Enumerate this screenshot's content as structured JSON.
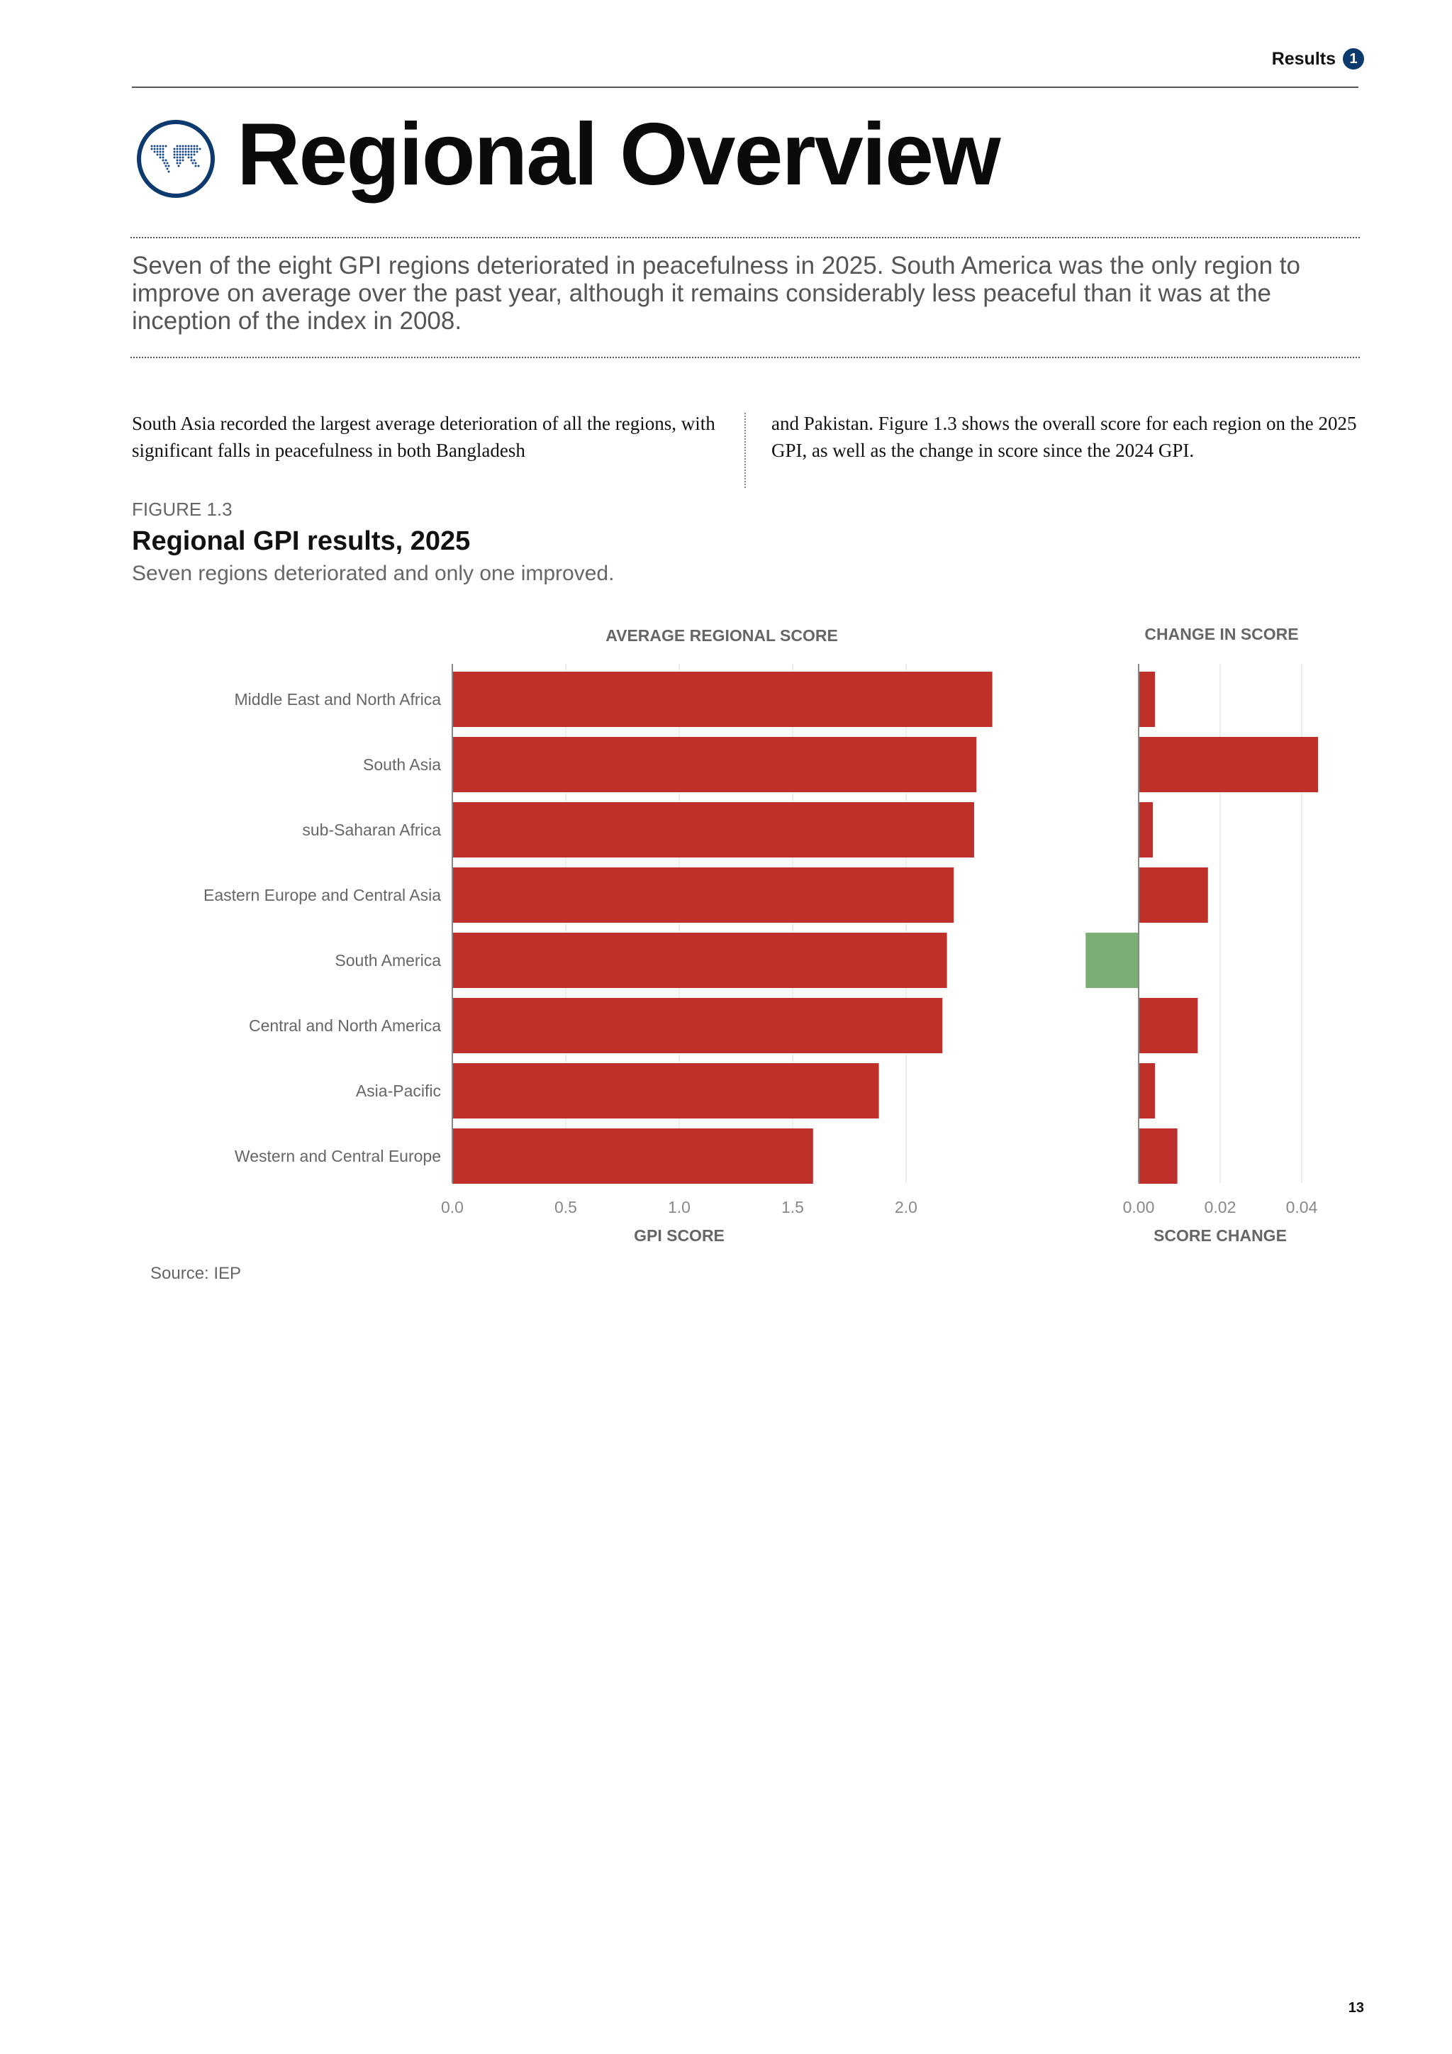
{
  "header": {
    "section": "Results",
    "section_number": "1"
  },
  "page": {
    "title": "Regional Overview",
    "icon": "world-map-icon",
    "lead": "Seven of the eight GPI regions deteriorated in peacefulness in 2025. South America was the only region to improve on average over the past year, although it remains considerably less peaceful than it was at the inception of the index in 2008.",
    "body_col1": "South Asia recorded the largest average deterioration of all the regions, with significant falls in peacefulness in both Bangladesh",
    "body_col2": "and Pakistan. Figure 1.3 shows the overall score for each region on the 2025 GPI, as well as the change in score since the 2024 GPI.",
    "page_number": "13"
  },
  "figure": {
    "label": "FIGURE 1.3",
    "title": "Regional GPI results, 2025",
    "subtitle": "Seven regions deteriorated and only one improved.",
    "source": "Source: IEP"
  },
  "colors": {
    "accent": "#0d3a6e",
    "deteriorate": "#c0302a",
    "improve": "#7aae75"
  },
  "chart_data": [
    {
      "type": "bar",
      "orientation": "horizontal",
      "title": "AVERAGE REGIONAL SCORE",
      "xlabel": "GPI SCORE",
      "categories": [
        "Middle East and North Africa",
        "South Asia",
        "sub-Saharan Africa",
        "Eastern Europe and Central Asia",
        "South America",
        "Central and North America",
        "Asia-Pacific",
        "Western and Central Europe"
      ],
      "values": [
        2.38,
        2.31,
        2.3,
        2.21,
        2.18,
        2.16,
        1.88,
        1.59
      ],
      "xlim": [
        0,
        2.5
      ],
      "ticks": [
        "0.0",
        "0.5",
        "1.0",
        "1.5",
        "2.0"
      ],
      "grid": true
    },
    {
      "type": "bar",
      "orientation": "horizontal",
      "title": "CHANGE IN SCORE",
      "xlabel": "SCORE CHANGE",
      "categories": [
        "Middle East and North Africa",
        "South Asia",
        "sub-Saharan Africa",
        "Eastern Europe and Central Asia",
        "South America",
        "Central and North America",
        "Asia-Pacific",
        "Western and Central Europe"
      ],
      "values": [
        0.004,
        0.044,
        0.0035,
        0.017,
        -0.013,
        0.0145,
        0.004,
        0.0095
      ],
      "xlim": [
        -0.014,
        0.044
      ],
      "ticks": [
        "0.00",
        "0.02",
        "0.04"
      ],
      "grid": true
    }
  ]
}
